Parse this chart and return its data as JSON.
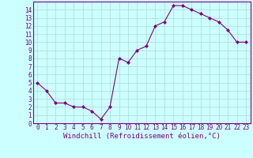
{
  "x": [
    0,
    1,
    2,
    3,
    4,
    5,
    6,
    7,
    8,
    9,
    10,
    11,
    12,
    13,
    14,
    15,
    16,
    17,
    18,
    19,
    20,
    21,
    22,
    23
  ],
  "y": [
    5.0,
    4.0,
    2.5,
    2.5,
    2.0,
    2.0,
    1.5,
    0.5,
    2.0,
    8.0,
    7.5,
    9.0,
    9.5,
    12.0,
    12.5,
    14.5,
    14.5,
    14.0,
    13.5,
    13.0,
    12.5,
    11.5,
    10.0,
    10.0
  ],
  "xlabel": "Windchill (Refroidissement éolien,°C)",
  "xlim_left": -0.5,
  "xlim_right": 23.5,
  "ylim": [
    0,
    15
  ],
  "yticks": [
    0,
    1,
    2,
    3,
    4,
    5,
    6,
    7,
    8,
    9,
    10,
    11,
    12,
    13,
    14
  ],
  "xticks": [
    0,
    1,
    2,
    3,
    4,
    5,
    6,
    7,
    8,
    9,
    10,
    11,
    12,
    13,
    14,
    15,
    16,
    17,
    18,
    19,
    20,
    21,
    22,
    23
  ],
  "line_color": "#800080",
  "marker_color": "#800080",
  "bg_color": "#ccffff",
  "grid_color": "#b0d8d8",
  "spine_color": "#800080",
  "xlabel_color": "#800080",
  "tick_color": "#800080",
  "xlabel_fontsize": 6.5,
  "tick_fontsize": 5.5,
  "marker": "D",
  "markersize": 2.0,
  "linewidth": 0.8
}
